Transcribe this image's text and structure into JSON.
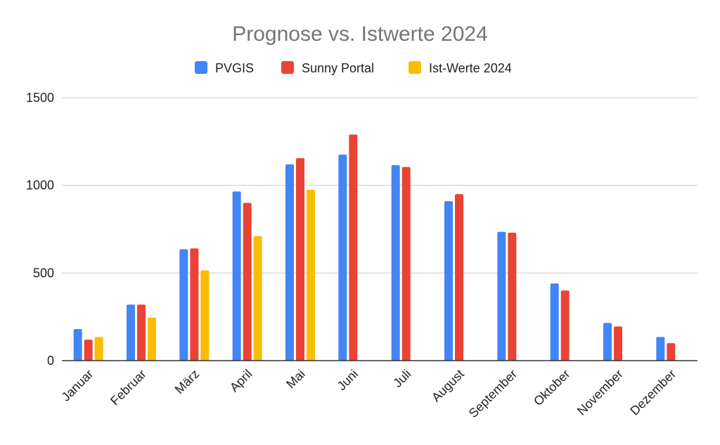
{
  "chart_data": {
    "type": "bar",
    "title": "Prognose vs. Istwerte 2024",
    "xlabel": "",
    "ylabel": "",
    "ylim": [
      0,
      1500
    ],
    "yticks": [
      0,
      500,
      1000,
      1500
    ],
    "grid": true,
    "legend_position": "top",
    "categories": [
      "Januar",
      "Februar",
      "März",
      "April",
      "Mai",
      "Juni",
      "Juli",
      "August",
      "September",
      "Oktober",
      "November",
      "Dezember"
    ],
    "series": [
      {
        "name": "PVGIS",
        "color": "#4285f4",
        "values": [
          180,
          320,
          635,
          965,
          1120,
          1175,
          1115,
          910,
          735,
          440,
          215,
          135
        ]
      },
      {
        "name": "Sunny Portal",
        "color": "#ea4335",
        "values": [
          120,
          320,
          640,
          900,
          1155,
          1290,
          1105,
          950,
          730,
          400,
          195,
          100
        ]
      },
      {
        "name": "Ist-Werte 2024",
        "color": "#fbbc04",
        "values": [
          135,
          245,
          515,
          710,
          975,
          null,
          null,
          null,
          null,
          null,
          null,
          null
        ]
      }
    ]
  }
}
